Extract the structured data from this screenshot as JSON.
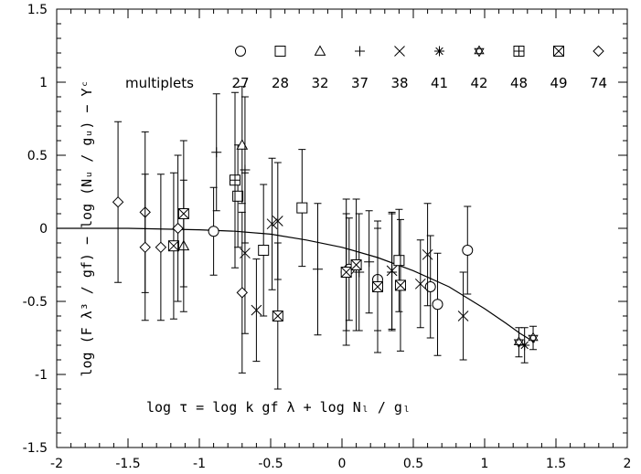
{
  "chart_data": {
    "type": "scatter",
    "title": "",
    "xlabel": "",
    "ylabel": "log (F λ³ / gf) − log (Nᵤ / gᵤ) − Yᶜ",
    "xlim": [
      -2,
      2
    ],
    "ylim": [
      -1.5,
      1.5
    ],
    "x_ticks": [
      -2,
      -1.5,
      -1,
      -0.5,
      0,
      0.5,
      1,
      1.5,
      2
    ],
    "y_ticks": [
      -1.5,
      -1,
      -0.5,
      0,
      0.5,
      1,
      1.5
    ],
    "x_tick_labels": [
      "-2",
      "-1.5",
      "-1",
      "-0.5",
      "0",
      "0.5",
      "1",
      "1.5",
      "2"
    ],
    "y_tick_labels": [
      "-1.5",
      "-1",
      "-0.5",
      "0",
      "0.5",
      "1",
      "1.5"
    ],
    "annotation": "log τ = log k gf λ + log Nₗ / gₗ",
    "legend": {
      "caption": "multiplets",
      "entries": [
        {
          "label": "27",
          "marker": "circle-icon"
        },
        {
          "label": "28",
          "marker": "square-icon"
        },
        {
          "label": "32",
          "marker": "triangle-icon"
        },
        {
          "label": "37",
          "marker": "plus-icon"
        },
        {
          "label": "38",
          "marker": "cross-icon"
        },
        {
          "label": "41",
          "marker": "asterisk-icon"
        },
        {
          "label": "42",
          "marker": "star-of-david-icon"
        },
        {
          "label": "48",
          "marker": "boxed-plus-icon"
        },
        {
          "label": "49",
          "marker": "boxed-cross-icon"
        },
        {
          "label": "74",
          "marker": "diamond-icon"
        }
      ]
    },
    "series": [
      {
        "name": "27",
        "marker": "circle",
        "points": [
          {
            "x": -0.9,
            "y": -0.02,
            "err": 0.3
          },
          {
            "x": 0.03,
            "y": -0.3,
            "err": 0.4
          },
          {
            "x": 0.05,
            "y": -0.28,
            "err": 0.35
          },
          {
            "x": 0.25,
            "y": -0.35,
            "err": 0.35
          },
          {
            "x": 0.62,
            "y": -0.4,
            "err": 0.35
          },
          {
            "x": 0.67,
            "y": -0.52,
            "err": 0.35
          },
          {
            "x": 0.88,
            "y": -0.15,
            "err": 0.3
          }
        ]
      },
      {
        "name": "28",
        "marker": "square",
        "points": [
          {
            "x": -0.73,
            "y": 0.22,
            "err": 0.35
          },
          {
            "x": -0.55,
            "y": -0.15,
            "err": 0.45
          },
          {
            "x": -0.28,
            "y": 0.14,
            "err": 0.4
          },
          {
            "x": 0.4,
            "y": -0.22,
            "err": 0.35
          }
        ]
      },
      {
        "name": "32",
        "marker": "triangle",
        "points": [
          {
            "x": -1.11,
            "y": -0.12,
            "err": 0.45
          },
          {
            "x": -0.7,
            "y": 0.57,
            "err": 0.4
          }
        ]
      },
      {
        "name": "37",
        "marker": "plus",
        "points": [
          {
            "x": -0.88,
            "y": 0.52,
            "err": 0.4
          },
          {
            "x": -0.68,
            "y": 0.4,
            "err": 0.5
          },
          {
            "x": -0.17,
            "y": -0.28,
            "err": 0.45
          },
          {
            "x": 0.12,
            "y": -0.3,
            "err": 0.4
          },
          {
            "x": 0.19,
            "y": -0.23,
            "err": 0.35
          },
          {
            "x": 0.35,
            "y": -0.3,
            "err": 0.4
          }
        ]
      },
      {
        "name": "38",
        "marker": "cross",
        "points": [
          {
            "x": -0.68,
            "y": -0.17,
            "err": 0.55
          },
          {
            "x": -0.6,
            "y": -0.56,
            "err": 0.35
          },
          {
            "x": -0.49,
            "y": 0.03,
            "err": 0.45
          },
          {
            "x": -0.45,
            "y": 0.05,
            "err": 0.4
          },
          {
            "x": 0.35,
            "y": -0.29,
            "err": 0.4
          },
          {
            "x": 0.55,
            "y": -0.38,
            "err": 0.3
          },
          {
            "x": 0.6,
            "y": -0.18,
            "err": 0.35
          },
          {
            "x": 0.85,
            "y": -0.6,
            "err": 0.3
          }
        ]
      },
      {
        "name": "41",
        "marker": "asterisk",
        "points": [
          {
            "x": 1.28,
            "y": -0.8,
            "err": 0.12
          }
        ]
      },
      {
        "name": "42",
        "marker": "star",
        "points": [
          {
            "x": 1.24,
            "y": -0.78,
            "err": 0.1
          },
          {
            "x": 1.34,
            "y": -0.75,
            "err": 0.08
          }
        ]
      },
      {
        "name": "48",
        "marker": "boxed-plus",
        "points": [
          {
            "x": -0.75,
            "y": 0.33,
            "err": 0.6
          }
        ]
      },
      {
        "name": "49",
        "marker": "boxed-cross",
        "points": [
          {
            "x": -1.18,
            "y": -0.12,
            "err": 0.5
          },
          {
            "x": -1.11,
            "y": 0.1,
            "err": 0.5
          },
          {
            "x": -0.45,
            "y": -0.6,
            "err": 0.5
          },
          {
            "x": 0.03,
            "y": -0.3,
            "err": 0.5
          },
          {
            "x": 0.1,
            "y": -0.25,
            "err": 0.45
          },
          {
            "x": 0.25,
            "y": -0.4,
            "err": 0.45
          },
          {
            "x": 0.41,
            "y": -0.39,
            "err": 0.45
          }
        ]
      },
      {
        "name": "74",
        "marker": "diamond",
        "points": [
          {
            "x": -1.57,
            "y": 0.18,
            "err": 0.55
          },
          {
            "x": -1.38,
            "y": 0.11,
            "err": 0.55
          },
          {
            "x": -1.38,
            "y": -0.13,
            "err": 0.5
          },
          {
            "x": -1.27,
            "y": -0.13,
            "err": 0.5
          },
          {
            "x": -1.15,
            "y": 0.0,
            "err": 0.5
          },
          {
            "x": -0.7,
            "y": -0.44,
            "err": 0.55
          }
        ]
      }
    ],
    "fit_curve": {
      "x": [
        -2,
        -1.5,
        -1,
        -0.75,
        -0.5,
        -0.25,
        0,
        0.25,
        0.5,
        0.75,
        1,
        1.15,
        1.25,
        1.35
      ],
      "y": [
        0.0,
        0.0,
        -0.01,
        -0.02,
        -0.04,
        -0.08,
        -0.13,
        -0.2,
        -0.29,
        -0.4,
        -0.55,
        -0.65,
        -0.72,
        -0.78
      ]
    }
  }
}
